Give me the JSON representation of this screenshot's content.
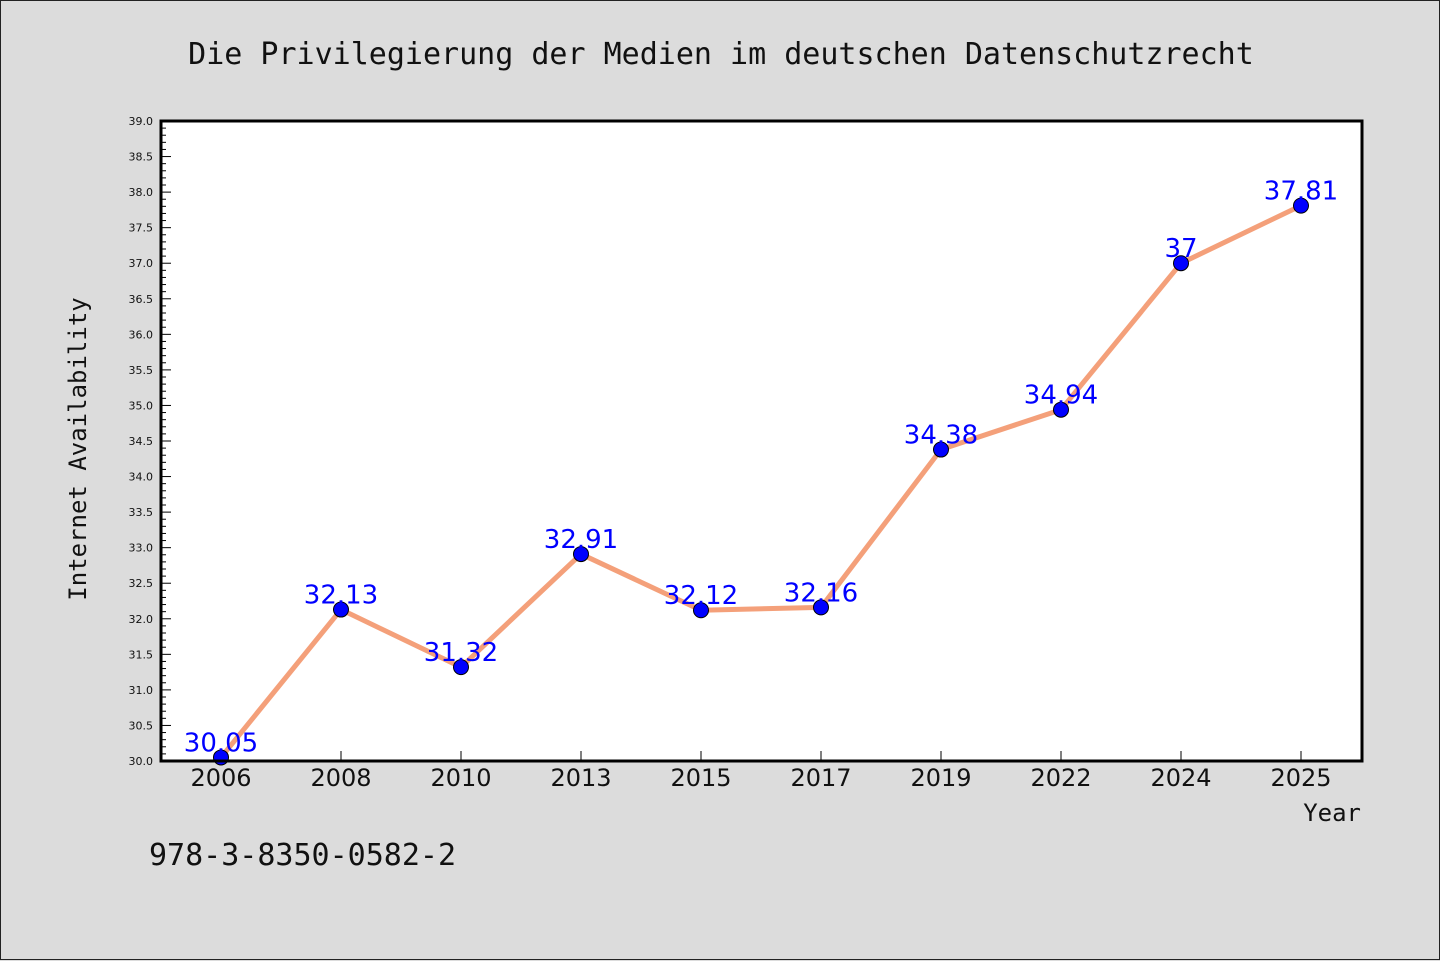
{
  "chart_data": {
    "type": "line",
    "title": "Die Privilegierung der Medien im deutschen Datenschutzrecht",
    "xlabel": "Year",
    "ylabel": "Internet Availability",
    "categories": [
      "2006",
      "2008",
      "2010",
      "2013",
      "2015",
      "2017",
      "2019",
      "2022",
      "2024",
      "2025"
    ],
    "series": [
      {
        "values": [
          30.05,
          32.13,
          31.32,
          32.91,
          32.12,
          32.16,
          34.38,
          34.94,
          37,
          37.81
        ],
        "data_labels": [
          "30.05",
          "32.13",
          "31.32",
          "32.91",
          "32.12",
          "32.16",
          "34.38",
          "34.94",
          "37",
          "37.81"
        ]
      }
    ],
    "ylim": [
      30.0,
      39.0
    ],
    "yticks": [
      "30.0",
      "30.5",
      "31.0",
      "31.5",
      "32.0",
      "32.5",
      "33.0",
      "33.5",
      "34.0",
      "34.5",
      "35.0",
      "35.5",
      "36.0",
      "36.5",
      "37.0",
      "37.5",
      "38.0",
      "38.5",
      "39.0"
    ],
    "grid": false,
    "line_color": "#f4a07a",
    "marker_color": "#0000ff",
    "label_color": "#0000ff"
  },
  "footer_text": "978-3-8350-0582-2"
}
